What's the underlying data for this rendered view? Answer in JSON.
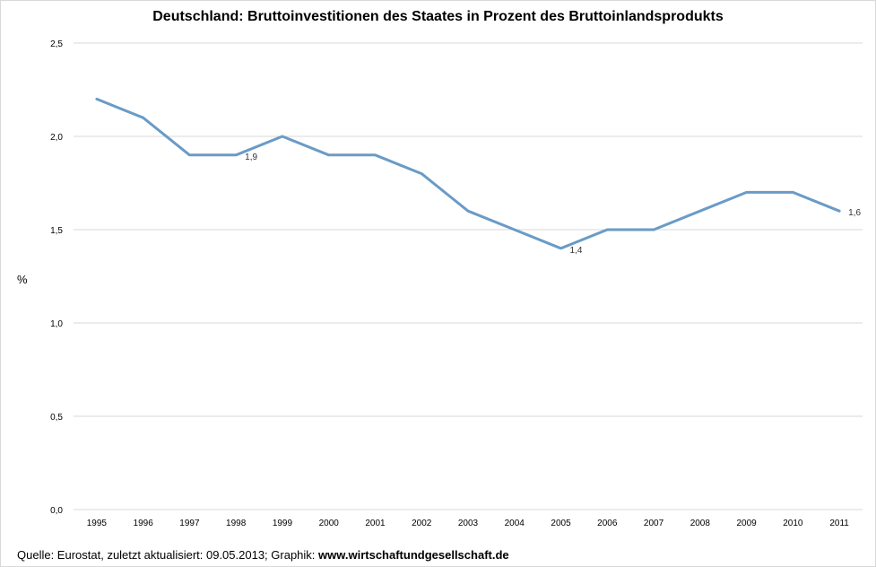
{
  "chart_data": {
    "type": "line",
    "title": "Deutschland: Bruttoinvestitionen des Staates in Prozent des Bruttoinlandsprodukts",
    "ylabel": "%",
    "xlabel": "",
    "ylim": [
      0,
      2.5
    ],
    "yticks": [
      "0,0",
      "0,5",
      "1,0",
      "1,5",
      "2,0",
      "2,5"
    ],
    "ytick_values": [
      0,
      0.5,
      1.0,
      1.5,
      2.0,
      2.5
    ],
    "categories": [
      "1995",
      "1996",
      "1997",
      "1998",
      "1999",
      "2000",
      "2001",
      "2002",
      "2003",
      "2004",
      "2005",
      "2006",
      "2007",
      "2008",
      "2009",
      "2010",
      "2011"
    ],
    "values": [
      2.2,
      2.1,
      1.9,
      1.9,
      2.0,
      1.9,
      1.9,
      1.8,
      1.6,
      1.5,
      1.4,
      1.5,
      1.5,
      1.6,
      1.7,
      1.7,
      1.6
    ],
    "data_labels": [
      {
        "index": 3,
        "text": "1,9"
      },
      {
        "index": 10,
        "text": "1,4"
      },
      {
        "index": 16,
        "text": "1,6"
      }
    ],
    "line_color": "#6a9bc6",
    "grid": true
  },
  "footer": {
    "source_prefix": "Quelle: Eurostat, zuletzt aktualisiert: 09.05.2013;  Graphik: ",
    "source_site": "www.wirtschaftundgesellschaft.de"
  }
}
